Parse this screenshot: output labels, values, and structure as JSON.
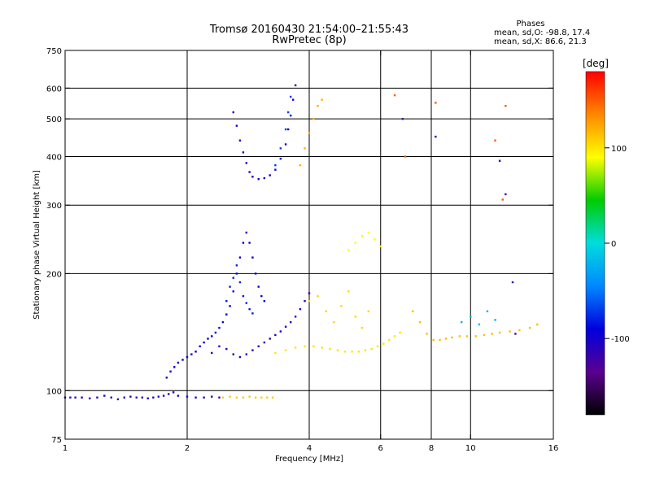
{
  "chart_data": {
    "type": "scatter",
    "title": "Tromsø 20160430 21:54:00–21:55:43",
    "subtitle": "RwPretec (8p)",
    "stats": {
      "heading": "Phases",
      "line1": "mean, sd,O:  -98.8, 17.4",
      "line2": "mean, sd,X:  86.6, 21.3"
    },
    "xlabel": "Frequency [MHz]",
    "ylabel": "Stationary phase Virtual Height [km]",
    "x_scale": "log",
    "y_scale": "log",
    "xlim": [
      1,
      16
    ],
    "ylim": [
      75,
      750
    ],
    "x_ticks": [
      {
        "value": 1,
        "label": "1"
      },
      {
        "value": 2,
        "label": "2"
      },
      {
        "value": 4,
        "label": "4"
      },
      {
        "value": 6,
        "label": "6"
      },
      {
        "value": 8,
        "label": "8"
      },
      {
        "value": 10,
        "label": "10"
      },
      {
        "value": 16,
        "label": "16"
      }
    ],
    "x_gridlines": [
      2,
      4,
      6,
      8,
      10
    ],
    "y_ticks": [
      {
        "value": 75,
        "label": "75"
      },
      {
        "value": 100,
        "label": "100"
      },
      {
        "value": 200,
        "label": "200"
      },
      {
        "value": 300,
        "label": "300"
      },
      {
        "value": 400,
        "label": "400"
      },
      {
        "value": 500,
        "label": "500"
      },
      {
        "value": 600,
        "label": "600"
      },
      {
        "value": 750,
        "label": "750"
      }
    ],
    "y_gridlines": [
      100,
      200,
      300,
      400,
      500,
      600
    ],
    "grid": true,
    "colorbar": {
      "label": "[deg]",
      "min": -180,
      "max": 180,
      "ticks": [
        {
          "value": 100,
          "label": "100"
        },
        {
          "value": 0,
          "label": "0"
        },
        {
          "value": -100,
          "label": "-100"
        }
      ],
      "colors": [
        "#000000",
        "#5a0090",
        "#0000dd",
        "#0088ff",
        "#00dddd",
        "#00cc00",
        "#ffff00",
        "#ff8800",
        "#ff0000"
      ]
    },
    "series": [
      {
        "phase": -110,
        "points": [
          [
            1.0,
            96
          ],
          [
            1.03,
            96
          ],
          [
            1.06,
            96
          ],
          [
            1.1,
            96
          ],
          [
            1.15,
            95.5
          ],
          [
            1.2,
            96
          ],
          [
            1.25,
            97
          ],
          [
            1.3,
            96
          ],
          [
            1.35,
            95
          ],
          [
            1.4,
            96
          ],
          [
            1.45,
            96.5
          ],
          [
            1.5,
            96
          ],
          [
            1.55,
            96
          ],
          [
            1.6,
            95.5
          ],
          [
            1.65,
            96
          ],
          [
            1.7,
            96.5
          ],
          [
            1.75,
            97
          ],
          [
            1.8,
            98
          ],
          [
            1.85,
            99
          ],
          [
            1.9,
            97
          ],
          [
            2.0,
            96.5
          ],
          [
            2.1,
            96
          ],
          [
            2.2,
            96
          ],
          [
            2.3,
            96.5
          ],
          [
            2.4,
            96
          ]
        ]
      },
      {
        "phase": 110,
        "points": [
          [
            2.45,
            96
          ],
          [
            2.55,
            96.5
          ],
          [
            2.65,
            96
          ],
          [
            2.75,
            96
          ],
          [
            2.85,
            96.5
          ],
          [
            2.95,
            96
          ],
          [
            3.05,
            96
          ],
          [
            3.15,
            96
          ],
          [
            3.25,
            96
          ]
        ]
      },
      {
        "phase": -95,
        "points": [
          [
            1.78,
            108
          ],
          [
            1.82,
            112
          ],
          [
            1.86,
            115
          ],
          [
            1.9,
            118
          ],
          [
            1.95,
            120
          ],
          [
            2.0,
            122
          ],
          [
            2.05,
            124
          ],
          [
            2.1,
            126
          ],
          [
            2.15,
            130
          ],
          [
            2.2,
            133
          ],
          [
            2.25,
            136
          ],
          [
            2.3,
            138
          ],
          [
            2.35,
            141
          ],
          [
            2.4,
            145
          ],
          [
            2.45,
            150
          ],
          [
            2.5,
            157
          ],
          [
            2.55,
            165
          ],
          [
            2.6,
            180
          ],
          [
            2.65,
            200
          ],
          [
            2.7,
            220
          ],
          [
            2.75,
            240
          ],
          [
            2.8,
            255
          ],
          [
            2.85,
            240
          ],
          [
            2.9,
            220
          ],
          [
            2.95,
            200
          ],
          [
            3.0,
            185
          ],
          [
            3.05,
            175
          ],
          [
            3.1,
            170
          ]
        ]
      },
      {
        "phase": -110,
        "points": [
          [
            2.3,
            125
          ],
          [
            2.4,
            130
          ],
          [
            2.5,
            128
          ],
          [
            2.6,
            124
          ],
          [
            2.7,
            122
          ],
          [
            2.8,
            124
          ],
          [
            2.9,
            127
          ],
          [
            3.0,
            130
          ],
          [
            3.1,
            133
          ],
          [
            3.2,
            136
          ],
          [
            3.3,
            139
          ],
          [
            3.4,
            142
          ],
          [
            3.5,
            146
          ],
          [
            3.6,
            150
          ],
          [
            3.7,
            155
          ],
          [
            3.8,
            162
          ],
          [
            3.9,
            170
          ],
          [
            4.0,
            178
          ]
        ]
      },
      {
        "phase": -80,
        "points": [
          [
            2.5,
            170
          ],
          [
            2.55,
            185
          ],
          [
            2.6,
            195
          ],
          [
            2.65,
            210
          ],
          [
            2.7,
            190
          ],
          [
            2.75,
            175
          ],
          [
            2.8,
            168
          ],
          [
            2.85,
            162
          ],
          [
            2.9,
            158
          ]
        ]
      },
      {
        "phase": -100,
        "points": [
          [
            2.6,
            520
          ],
          [
            2.65,
            480
          ],
          [
            2.7,
            440
          ],
          [
            2.75,
            410
          ],
          [
            2.8,
            385
          ],
          [
            2.85,
            365
          ],
          [
            2.9,
            355
          ],
          [
            3.0,
            350
          ],
          [
            3.1,
            352
          ],
          [
            3.2,
            358
          ],
          [
            3.3,
            370
          ],
          [
            3.4,
            395
          ],
          [
            3.5,
            430
          ],
          [
            3.55,
            470
          ],
          [
            3.6,
            510
          ],
          [
            3.65,
            560
          ],
          [
            3.7,
            610
          ]
        ]
      },
      {
        "phase": -70,
        "points": [
          [
            3.3,
            380
          ],
          [
            3.4,
            420
          ],
          [
            3.5,
            470
          ],
          [
            3.55,
            520
          ],
          [
            3.6,
            570
          ]
        ]
      },
      {
        "phase": 100,
        "points": [
          [
            3.3,
            125
          ],
          [
            3.5,
            127
          ],
          [
            3.7,
            129
          ],
          [
            3.9,
            130
          ],
          [
            4.1,
            130
          ],
          [
            4.3,
            129
          ],
          [
            4.5,
            128
          ],
          [
            4.7,
            127
          ],
          [
            4.9,
            126
          ],
          [
            5.1,
            126
          ],
          [
            5.3,
            126
          ],
          [
            5.5,
            127
          ],
          [
            5.7,
            128
          ],
          [
            5.9,
            130
          ],
          [
            6.1,
            132
          ],
          [
            6.3,
            135
          ],
          [
            6.5,
            138
          ],
          [
            6.7,
            141
          ]
        ]
      },
      {
        "phase": 105,
        "points": [
          [
            4.0,
            170
          ],
          [
            4.2,
            175
          ],
          [
            4.4,
            160
          ],
          [
            4.6,
            150
          ],
          [
            4.8,
            165
          ],
          [
            5.0,
            180
          ],
          [
            5.2,
            155
          ],
          [
            5.4,
            145
          ],
          [
            5.6,
            160
          ]
        ]
      },
      {
        "phase": 120,
        "points": [
          [
            3.8,
            380
          ],
          [
            3.9,
            420
          ],
          [
            4.0,
            460
          ],
          [
            4.1,
            500
          ],
          [
            4.2,
            540
          ],
          [
            4.3,
            560
          ]
        ]
      },
      {
        "phase": 90,
        "points": [
          [
            5.0,
            230
          ],
          [
            5.2,
            240
          ],
          [
            5.4,
            250
          ],
          [
            5.6,
            255
          ],
          [
            5.8,
            245
          ],
          [
            6.0,
            235
          ]
        ]
      },
      {
        "phase": 115,
        "points": [
          [
            7.2,
            160
          ],
          [
            7.5,
            150
          ],
          [
            7.8,
            140
          ],
          [
            8.1,
            135
          ],
          [
            8.4,
            135
          ],
          [
            8.7,
            136
          ],
          [
            9.0,
            137
          ],
          [
            9.4,
            138
          ],
          [
            9.8,
            138
          ],
          [
            10.3,
            138
          ],
          [
            10.8,
            139
          ],
          [
            11.3,
            140
          ],
          [
            11.8,
            141
          ],
          [
            12.5,
            142
          ],
          [
            13.2,
            143
          ],
          [
            14.0,
            145
          ],
          [
            14.6,
            148
          ]
        ]
      },
      {
        "phase": -20,
        "points": [
          [
            9.5,
            150
          ],
          [
            10.0,
            155
          ],
          [
            10.5,
            148
          ],
          [
            11.0,
            160
          ],
          [
            11.5,
            152
          ]
        ]
      },
      {
        "phase": 150,
        "points": [
          [
            6.5,
            575
          ],
          [
            6.9,
            400
          ],
          [
            8.2,
            550
          ],
          [
            11.5,
            440
          ],
          [
            12.0,
            310
          ],
          [
            12.2,
            540
          ]
        ]
      },
      {
        "phase": -120,
        "points": [
          [
            6.8,
            500
          ],
          [
            8.2,
            450
          ],
          [
            11.8,
            390
          ],
          [
            12.2,
            320
          ],
          [
            12.7,
            190
          ],
          [
            12.9,
            140
          ]
        ]
      }
    ]
  }
}
